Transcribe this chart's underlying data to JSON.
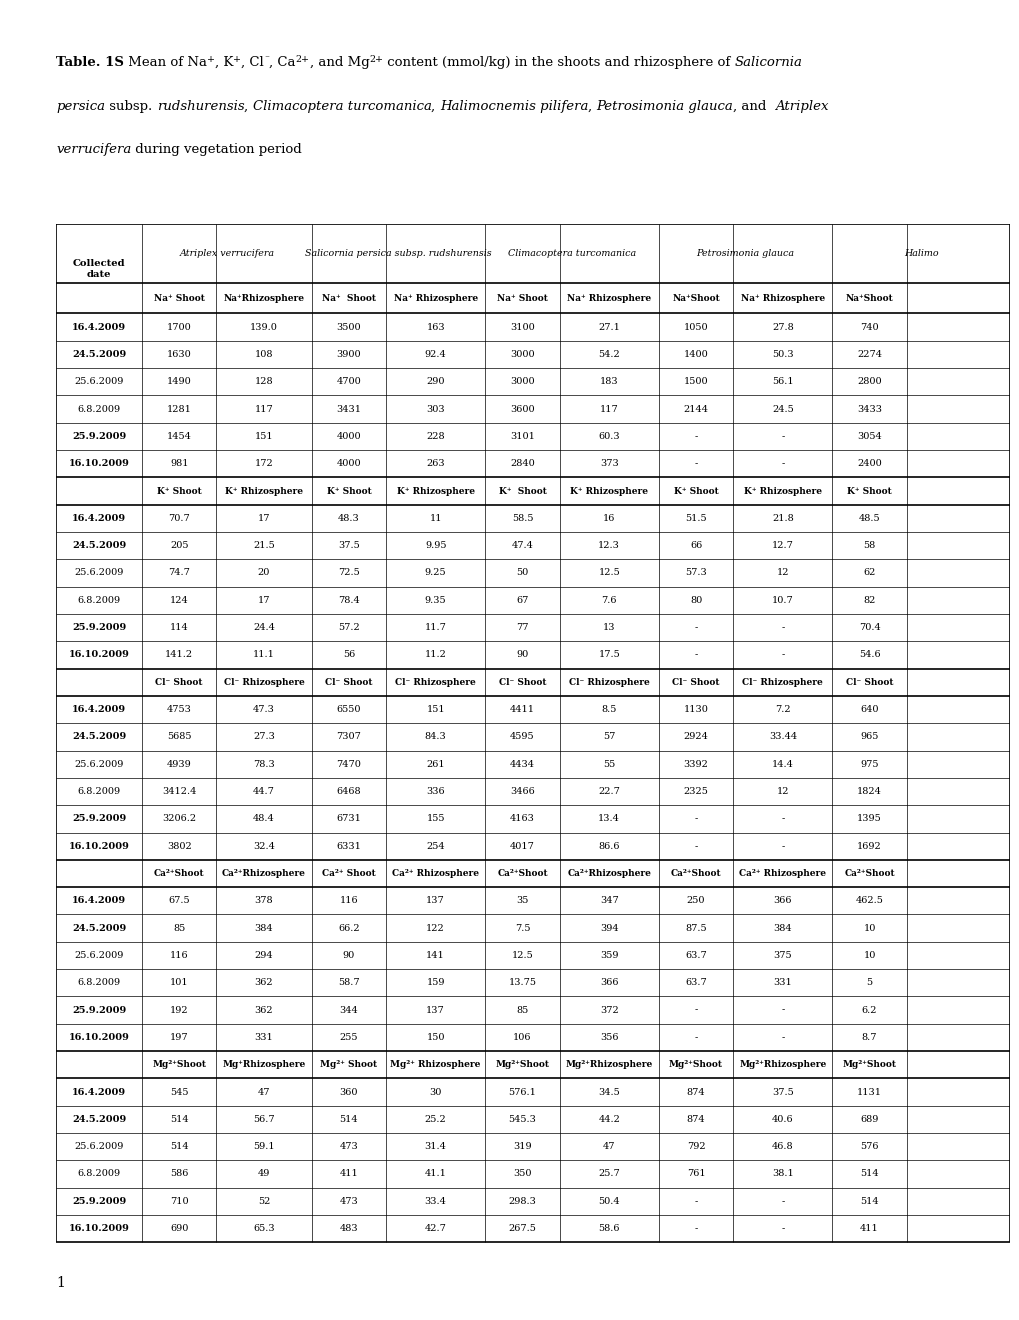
{
  "dates": [
    "16.4.2009",
    "24.5.2009",
    "25.6.2009",
    "6.8.2009",
    "25.9.2009",
    "16.10.2009"
  ],
  "dates_bold": [
    true,
    true,
    false,
    false,
    true,
    true
  ],
  "na_data": [
    [
      "1700",
      "139.0",
      "3500",
      "163",
      "3100",
      "27.1",
      "1050",
      "27.8",
      "740"
    ],
    [
      "1630",
      "108",
      "3900",
      "92.4",
      "3000",
      "54.2",
      "1400",
      "50.3",
      "2274"
    ],
    [
      "1490",
      "128",
      "4700",
      "290",
      "3000",
      "183",
      "1500",
      "56.1",
      "2800"
    ],
    [
      "1281",
      "117",
      "3431",
      "303",
      "3600",
      "117",
      "2144",
      "24.5",
      "3433"
    ],
    [
      "1454",
      "151",
      "4000",
      "228",
      "3101",
      "60.3",
      "-",
      "-",
      "3054"
    ],
    [
      "981",
      "172",
      "4000",
      "263",
      "2840",
      "373",
      "-",
      "-",
      "2400"
    ]
  ],
  "k_data": [
    [
      "70.7",
      "17",
      "48.3",
      "11",
      "58.5",
      "16",
      "51.5",
      "21.8",
      "48.5"
    ],
    [
      "205",
      "21.5",
      "37.5",
      "9.95",
      "47.4",
      "12.3",
      "66",
      "12.7",
      "58"
    ],
    [
      "74.7",
      "20",
      "72.5",
      "9.25",
      "50",
      "12.5",
      "57.3",
      "12",
      "62"
    ],
    [
      "124",
      "17",
      "78.4",
      "9.35",
      "67",
      "7.6",
      "80",
      "10.7",
      "82"
    ],
    [
      "114",
      "24.4",
      "57.2",
      "11.7",
      "77",
      "13",
      "-",
      "-",
      "70.4"
    ],
    [
      "141.2",
      "11.1",
      "56",
      "11.2",
      "90",
      "17.5",
      "-",
      "-",
      "54.6"
    ]
  ],
  "cl_data": [
    [
      "4753",
      "47.3",
      "6550",
      "151",
      "4411",
      "8.5",
      "1130",
      "7.2",
      "640"
    ],
    [
      "5685",
      "27.3",
      "7307",
      "84.3",
      "4595",
      "57",
      "2924",
      "33.44",
      "965"
    ],
    [
      "4939",
      "78.3",
      "7470",
      "261",
      "4434",
      "55",
      "3392",
      "14.4",
      "975"
    ],
    [
      "3412.4",
      "44.7",
      "6468",
      "336",
      "3466",
      "22.7",
      "2325",
      "12",
      "1824"
    ],
    [
      "3206.2",
      "48.4",
      "6731",
      "155",
      "4163",
      "13.4",
      "-",
      "-",
      "1395"
    ],
    [
      "3802",
      "32.4",
      "6331",
      "254",
      "4017",
      "86.6",
      "-",
      "-",
      "1692"
    ]
  ],
  "ca_data": [
    [
      "67.5",
      "378",
      "116",
      "137",
      "35",
      "347",
      "250",
      "366",
      "462.5"
    ],
    [
      "85",
      "384",
      "66.2",
      "122",
      "7.5",
      "394",
      "87.5",
      "384",
      "10"
    ],
    [
      "116",
      "294",
      "90",
      "141",
      "12.5",
      "359",
      "63.7",
      "375",
      "10"
    ],
    [
      "101",
      "362",
      "58.7",
      "159",
      "13.75",
      "366",
      "63.7",
      "331",
      "5"
    ],
    [
      "192",
      "362",
      "344",
      "137",
      "85",
      "372",
      "-",
      "-",
      "6.2"
    ],
    [
      "197",
      "331",
      "255",
      "150",
      "106",
      "356",
      "-",
      "-",
      "8.7"
    ]
  ],
  "mg_data": [
    [
      "545",
      "47",
      "360",
      "30",
      "576.1",
      "34.5",
      "874",
      "37.5",
      "1131"
    ],
    [
      "514",
      "56.7",
      "514",
      "25.2",
      "545.3",
      "44.2",
      "874",
      "40.6",
      "689"
    ],
    [
      "514",
      "59.1",
      "473",
      "31.4",
      "319",
      "47",
      "792",
      "46.8",
      "576"
    ],
    [
      "586",
      "49",
      "411",
      "41.1",
      "350",
      "25.7",
      "761",
      "38.1",
      "514"
    ],
    [
      "710",
      "52",
      "473",
      "33.4",
      "298.3",
      "50.4",
      "-",
      "-",
      "514"
    ],
    [
      "690",
      "65.3",
      "483",
      "42.7",
      "267.5",
      "58.6",
      "-",
      "-",
      "411"
    ]
  ],
  "species": [
    "Atriplex verrucifera",
    "Salicornia persica subsp. rudshurensis",
    "Climacoptera turcomanica",
    "Petrosimonia glauca",
    "Halimo"
  ],
  "na_col_headers": [
    "Na⁺ Shoot",
    "Na⁺Rhizosphere",
    "Na⁺  Shoot",
    "Na⁺ Rhizosphere",
    "Na⁺ Shoot",
    "Na⁺ Rhizosphere",
    "Na⁺Shoot",
    "Na⁺ Rhizosphere",
    "Na⁺Shoot"
  ],
  "k_col_headers": [
    "K⁺ Shoot",
    "K⁺ Rhizosphere",
    "K⁺ Shoot",
    "K⁺ Rhizosphere",
    "K⁺  Shoot",
    "K⁺ Rhizosphere",
    "K⁺ Shoot",
    "K⁺ Rhizosphere",
    "K⁺ Shoot"
  ],
  "cl_col_headers": [
    "Cl⁻ Shoot",
    "Cl⁻ Rhizosphere",
    "Cl⁻ Shoot",
    "Cl⁻ Rhizosphere",
    "Cl⁻ Shoot",
    "Cl⁻ Rhizosphere",
    "Cl⁻ Shoot",
    "Cl⁻ Rhizosphere",
    "Cl⁻ Shoot"
  ],
  "ca_col_headers": [
    "Ca²⁺Shoot",
    "Ca²⁺Rhizosphere",
    "Ca²⁺ Shoot",
    "Ca²⁺ Rhizosphere",
    "Ca²⁺Shoot",
    "Ca²⁺Rhizosphere",
    "Ca²⁺Shoot",
    "Ca²⁺ Rhizosphere",
    "Ca²⁺Shoot"
  ],
  "mg_col_headers": [
    "Mg²⁺Shoot",
    "Mg⁺Rhizosphere",
    "Mg²⁺ Shoot",
    "Mg²⁺ Rhizosphere",
    "Mg²⁺Shoot",
    "Mg²⁺Rhizosphere",
    "Mg²⁺Shoot",
    "Mg²⁺Rhizosphere",
    "Mg²⁺Shoot"
  ]
}
